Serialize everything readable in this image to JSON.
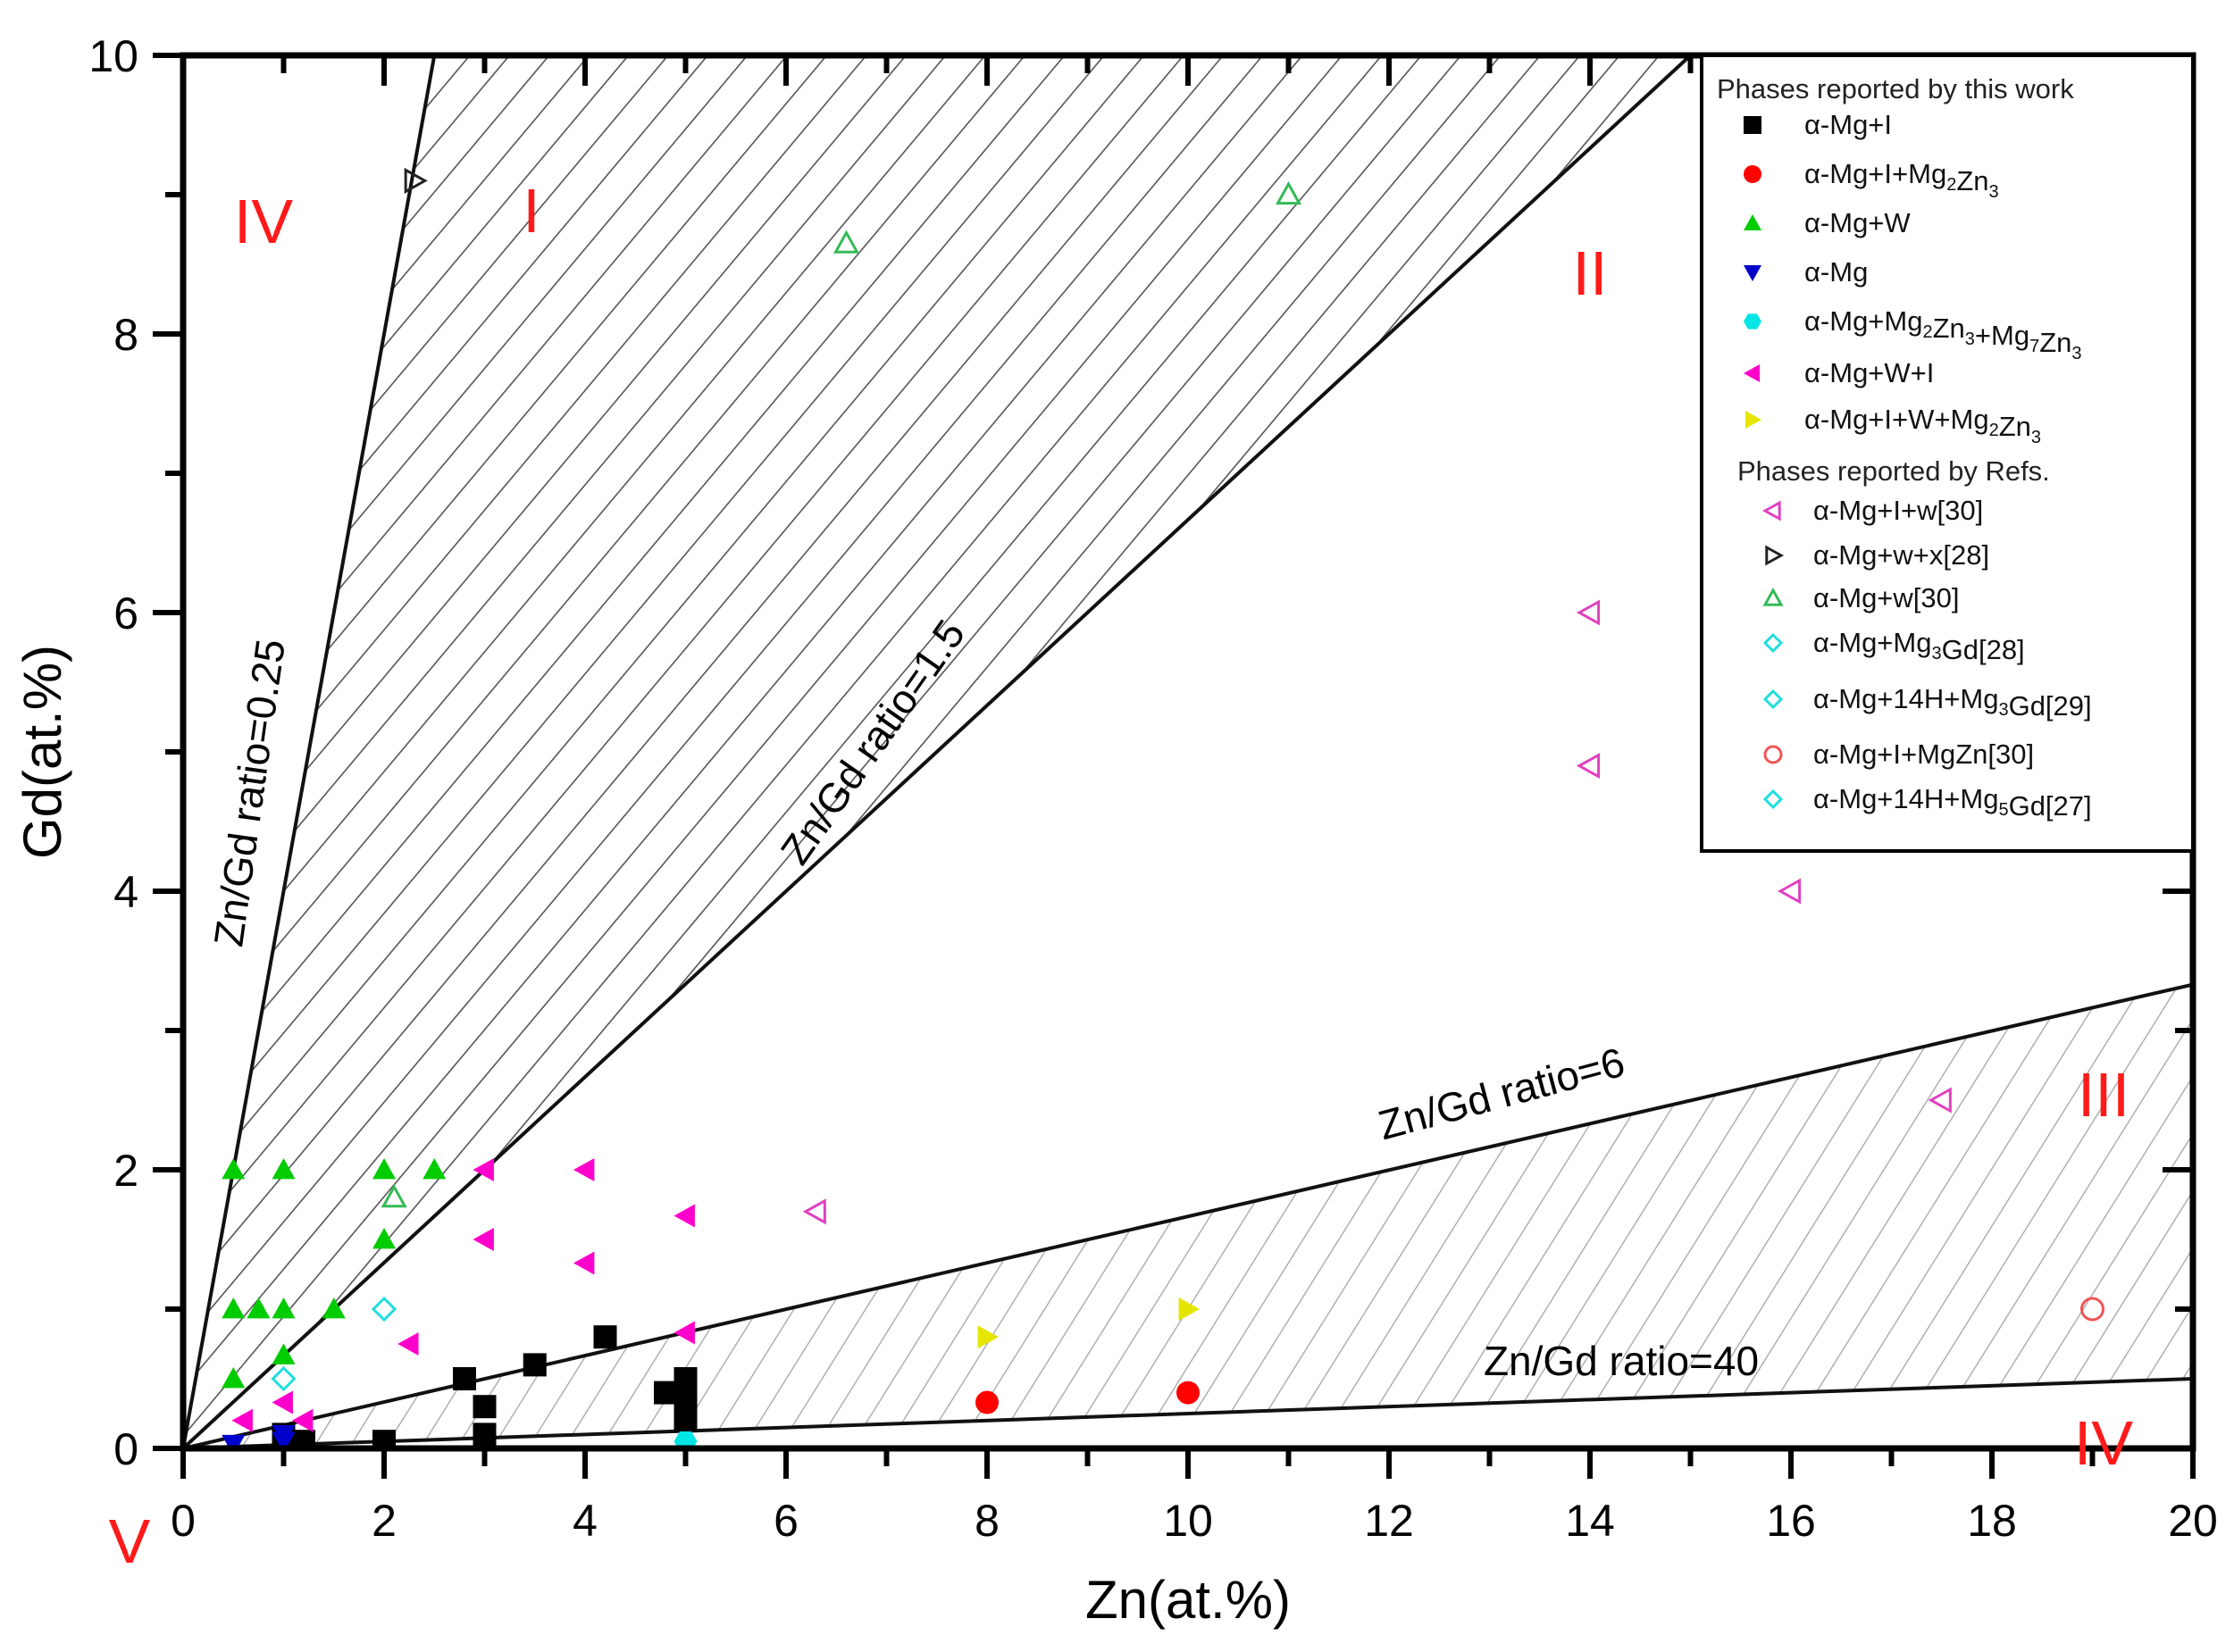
{
  "chart_data": {
    "type": "scatter",
    "title": "",
    "xlabel": "Zn(at.%)",
    "ylabel": "Gd(at.%)",
    "xlim": [
      0,
      20
    ],
    "ylim": [
      0,
      10
    ],
    "x_ticks": [
      0,
      2,
      4,
      6,
      8,
      10,
      12,
      14,
      16,
      18,
      20
    ],
    "y_ticks": [
      0,
      2,
      4,
      6,
      8,
      10
    ],
    "grid": false,
    "legend_position": "upper right",
    "ratio_lines": [
      {
        "label": "Zn/Gd ratio=0.25",
        "ratio": 0.25,
        "end": [
          2.5,
          10
        ]
      },
      {
        "label": "Zn/Gd ratio=1.5",
        "ratio": 1.5,
        "end": [
          15,
          10
        ]
      },
      {
        "label": "Zn/Gd ratio=6",
        "ratio": 6,
        "end": [
          20,
          3.33
        ]
      },
      {
        "label": "Zn/Gd ratio=40",
        "ratio": 40,
        "end": [
          20,
          0.5
        ]
      }
    ],
    "hatched_regions": [
      {
        "between": [
          "Zn/Gd ratio=0.25",
          "Zn/Gd ratio=1.5"
        ],
        "region": "I"
      },
      {
        "between": [
          "Zn/Gd ratio=6",
          "Zn/Gd ratio=40"
        ],
        "region": "III"
      }
    ],
    "region_labels": [
      {
        "text": "IV",
        "x": 1.0,
        "y": 8.65
      },
      {
        "text": "I",
        "x": 3.5,
        "y": 8.75
      },
      {
        "text": "II",
        "x": 14,
        "y": 8.3
      },
      {
        "text": "III",
        "x": 19.0,
        "y": 2.5
      },
      {
        "text": "IV",
        "x": 19.0,
        "y": 0.05
      },
      {
        "text": "V",
        "x": -0.5,
        "y": -0.6
      }
    ],
    "legend_groups": [
      {
        "title": "Phases reported by this work"
      },
      {
        "title": "Phases reported by Refs."
      }
    ],
    "series": [
      {
        "name": "α-Mg+I",
        "group": "this work",
        "marker": "square",
        "filled": true,
        "color": "#000000",
        "points": [
          [
            2.8,
            0.5
          ],
          [
            3.5,
            0.6
          ],
          [
            4.2,
            0.8
          ],
          [
            3,
            0.3
          ],
          [
            3,
            0.1
          ],
          [
            2,
            0.05
          ],
          [
            1.2,
            0.05
          ],
          [
            1,
            0.1
          ],
          [
            4.8,
            0.4
          ],
          [
            5,
            0.5
          ],
          [
            5,
            0.35
          ],
          [
            5,
            0.2
          ]
        ]
      },
      {
        "name": "α-Mg+I+Mg2Zn3",
        "group": "this work",
        "marker": "circle",
        "filled": true,
        "color": "#ff0000",
        "points": [
          [
            8,
            0.33
          ],
          [
            10,
            0.4
          ]
        ]
      },
      {
        "name": "α-Mg+W",
        "group": "this work",
        "marker": "triangle-up",
        "filled": true,
        "color": "#00cc00",
        "points": [
          [
            0.5,
            2
          ],
          [
            1,
            2
          ],
          [
            2,
            2
          ],
          [
            2.5,
            2
          ],
          [
            0.5,
            1
          ],
          [
            0.75,
            1
          ],
          [
            1,
            1
          ],
          [
            1.5,
            1
          ],
          [
            0.5,
            0.5
          ],
          [
            1,
            0.67
          ],
          [
            2,
            1.5
          ]
        ]
      },
      {
        "name": "α-Mg",
        "group": "this work",
        "marker": "triangle-down",
        "filled": true,
        "color": "#0000cc",
        "points": [
          [
            0.5,
            0.03
          ],
          [
            1,
            0.1
          ],
          [
            1,
            0.05
          ]
        ]
      },
      {
        "name": "α-Mg+Mg2Zn3+Mg7Zn3",
        "group": "this work",
        "marker": "hexagon",
        "filled": true,
        "color": "#00e5e5",
        "points": [
          [
            5,
            0.05
          ]
        ]
      },
      {
        "name": "α-Mg+W+I",
        "group": "this work",
        "marker": "triangle-left",
        "filled": true,
        "color": "#ff00cc",
        "points": [
          [
            3,
            2
          ],
          [
            4,
            2
          ],
          [
            5,
            1.67
          ],
          [
            3,
            1.5
          ],
          [
            4,
            1.33
          ],
          [
            2.25,
            0.75
          ],
          [
            5,
            0.83
          ],
          [
            1,
            0.33
          ],
          [
            0.6,
            0.2
          ],
          [
            1.2,
            0.2
          ]
        ]
      },
      {
        "name": "α-Mg+I+W+Mg2Zn3",
        "group": "this work",
        "marker": "triangle-right",
        "filled": true,
        "color": "#e5e500",
        "points": [
          [
            8,
            0.8
          ],
          [
            10,
            1
          ]
        ]
      },
      {
        "name": "α-Mg+I+w[30]",
        "group": "Refs.",
        "marker": "triangle-left",
        "filled": false,
        "color": "#e040c0",
        "points": [
          [
            14,
            6
          ],
          [
            14,
            4.9
          ],
          [
            16,
            4
          ],
          [
            17.5,
            2.5
          ],
          [
            6.3,
            1.7
          ]
        ]
      },
      {
        "name": "α-Mg+w+x[28]",
        "group": "Refs.",
        "marker": "triangle-right",
        "filled": false,
        "color": "#222222",
        "points": [
          [
            2.3,
            9.1
          ]
        ]
      },
      {
        "name": "α-Mg+w[30]",
        "group": "Refs.",
        "marker": "triangle-up",
        "filled": false,
        "color": "#33bb55",
        "points": [
          [
            11,
            9
          ],
          [
            6.6,
            8.65
          ],
          [
            2.1,
            1.8
          ]
        ]
      },
      {
        "name": "α-Mg+Mg3Gd[28]",
        "group": "Refs.",
        "marker": "diamond",
        "filled": false,
        "color": "#22dddd",
        "points": [
          [
            2,
            1
          ]
        ]
      },
      {
        "name": "α-Mg+14H+Mg3Gd[29]",
        "group": "Refs.",
        "marker": "diamond",
        "filled": false,
        "color": "#22dddd",
        "points": [
          [
            1,
            0.5
          ]
        ]
      },
      {
        "name": "α-Mg+I+MgZn[30]",
        "group": "Refs.",
        "marker": "circle",
        "filled": false,
        "color": "#ee5555",
        "points": [
          [
            19,
            1
          ]
        ]
      },
      {
        "name": "α-Mg+14H+Mg5Gd[27]",
        "group": "Refs.",
        "marker": "diamond",
        "filled": false,
        "color": "#22dddd",
        "points": []
      }
    ]
  },
  "axes": {
    "x_title": "Zn(at.%)",
    "y_title": "Gd(at.%)",
    "x_tick_labels": [
      "0",
      "2",
      "4",
      "6",
      "8",
      "10",
      "12",
      "14",
      "16",
      "18",
      "20"
    ],
    "y_tick_labels": [
      "0",
      "2",
      "4",
      "6",
      "8",
      "10"
    ]
  },
  "annotations": {
    "ratio_025": "Zn/Gd ratio=0.25",
    "ratio_15": "Zn/Gd ratio=1.5",
    "ratio_6": "Zn/Gd ratio=6",
    "ratio_40": "Zn/Gd ratio=40",
    "region_iv_top": "IV",
    "region_i": "I",
    "region_ii": "II",
    "region_iii": "III",
    "region_iv_bottom": "IV",
    "region_v": "V"
  },
  "legend": {
    "title_this_work": "Phases reported by this work",
    "title_refs": "Phases reported by Refs.",
    "items": [
      {
        "base": "α-Mg+I",
        "parts": []
      },
      {
        "base": "α-Mg+I+Mg",
        "parts": [
          [
            "2",
            ""
          ],
          [
            "Zn",
            "3"
          ]
        ]
      },
      {
        "base": "α-Mg+W",
        "parts": []
      },
      {
        "base": "α-Mg",
        "parts": []
      },
      {
        "base": "α-Mg+Mg",
        "parts": [
          [
            "2",
            ""
          ],
          [
            "Zn",
            "3"
          ],
          [
            "+Mg",
            "7"
          ],
          [
            "Zn",
            "3"
          ]
        ]
      },
      {
        "base": "α-Mg+W+I",
        "parts": []
      },
      {
        "base": "α-Mg+I+W+Mg",
        "parts": [
          [
            "2",
            ""
          ],
          [
            "Zn",
            "3"
          ]
        ]
      },
      {
        "base": "α-Mg+I+w[30]",
        "parts": []
      },
      {
        "base": "α-Mg+w+x[28]",
        "parts": []
      },
      {
        "base": "α-Mg+w[30]",
        "parts": []
      },
      {
        "base": "α-Mg+Mg",
        "parts": [
          [
            "3",
            ""
          ],
          [
            "Gd[28]",
            ""
          ]
        ]
      },
      {
        "base": "α-Mg+14H+Mg",
        "parts": [
          [
            "3",
            ""
          ],
          [
            "Gd[29]",
            ""
          ]
        ]
      },
      {
        "base": "α-Mg+I+MgZn[30]",
        "parts": []
      },
      {
        "base": "α-Mg+14H+Mg",
        "parts": [
          [
            "5",
            ""
          ],
          [
            "Gd[27]",
            ""
          ]
        ]
      }
    ]
  }
}
